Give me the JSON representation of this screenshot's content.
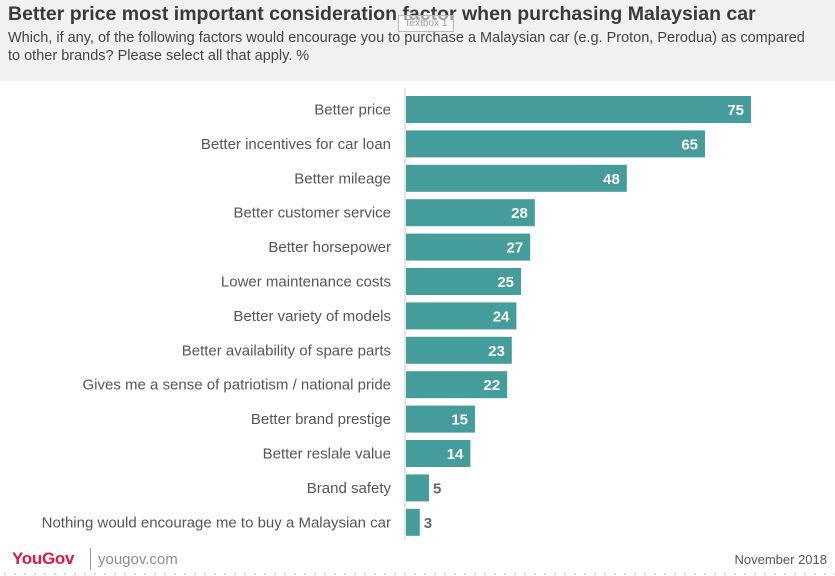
{
  "header": {
    "title": "Better price most important consideration factor when purchasing Malaysian car",
    "subtitle": "Which, if any, of the following factors would encourage you to purchase a Malaysian car (e.g. Proton, Perodua) as compared to other brands? Please select all that apply. %",
    "textbox_label": "Textbox 1"
  },
  "chart_data": {
    "type": "bar",
    "orientation": "horizontal",
    "categories": [
      "Better price",
      "Better incentives for car loan",
      "Better mileage",
      "Better customer service",
      "Better horsepower",
      "Lower maintenance costs",
      "Better variety of models",
      "Better availability of spare parts",
      "Gives me a sense of patriotism / national pride",
      "Better brand prestige",
      "Better reslale value",
      "Brand safety",
      "Nothing would encourage me to buy a Malaysian car"
    ],
    "values": [
      75,
      65,
      48,
      28,
      27,
      25,
      24,
      23,
      22,
      15,
      14,
      5,
      3
    ],
    "bar_color": "#449d9b",
    "label_inside_color": "#ffffff",
    "label_outside_color": "#666666"
  },
  "footer": {
    "logo": "YouGov",
    "site": "yougov.com",
    "date": "November 2018",
    "logo_color": "#e3173e"
  }
}
